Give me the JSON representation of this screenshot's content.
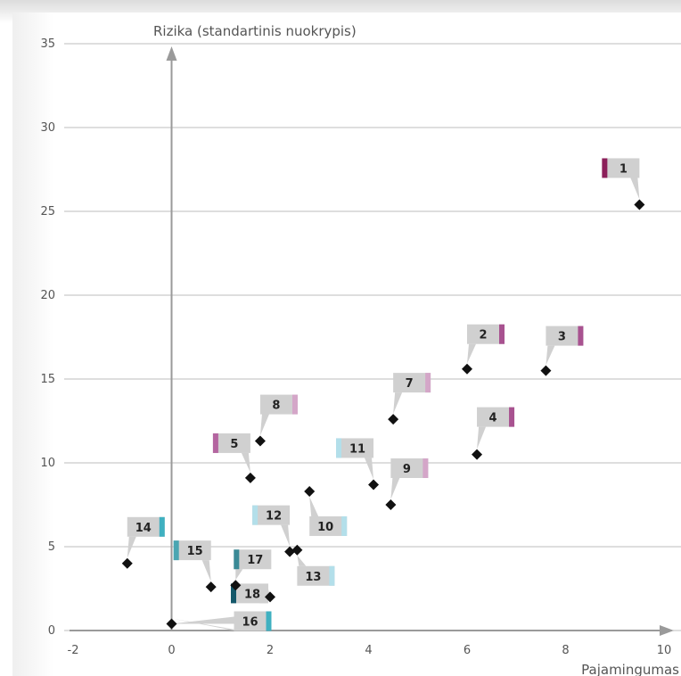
{
  "chart_data": {
    "type": "scatter",
    "ylabel": "Rizika (standartinis nuokrypis)",
    "xlabel": "Pajamingumas",
    "xlim": [
      -2,
      10
    ],
    "ylim": [
      0,
      35
    ],
    "x_ticks": [
      "-2",
      "0",
      "2",
      "4",
      "6",
      "8",
      "10"
    ],
    "y_ticks": [
      "0",
      "5",
      "10",
      "15",
      "20",
      "25",
      "30",
      "35"
    ],
    "grid": "horizontal",
    "points": [
      {
        "label": "1",
        "x": 9.5,
        "y": 25.4,
        "color": "#8c1f5a"
      },
      {
        "label": "2",
        "x": 6.0,
        "y": 15.6,
        "color": "#a85290"
      },
      {
        "label": "3",
        "x": 7.6,
        "y": 15.5,
        "color": "#a85290"
      },
      {
        "label": "4",
        "x": 6.2,
        "y": 10.5,
        "color": "#a85290"
      },
      {
        "label": "5",
        "x": 1.6,
        "y": 9.1,
        "color": "#b465a0"
      },
      {
        "label": "7",
        "x": 4.5,
        "y": 12.6,
        "color": "#d4a6c8"
      },
      {
        "label": "8",
        "x": 1.8,
        "y": 11.3,
        "color": "#d4a6c8"
      },
      {
        "label": "9",
        "x": 4.45,
        "y": 7.5,
        "color": "#d4a6c8"
      },
      {
        "label": "10",
        "x": 2.8,
        "y": 8.3,
        "color": "#b3dfea"
      },
      {
        "label": "11",
        "x": 4.1,
        "y": 8.7,
        "color": "#b3dfea"
      },
      {
        "label": "12",
        "x": 2.4,
        "y": 4.7,
        "color": "#b3dfea"
      },
      {
        "label": "13",
        "x": 2.55,
        "y": 4.8,
        "color": "#b3dfea"
      },
      {
        "label": "14",
        "x": -0.9,
        "y": 4.0,
        "color": "#3fb0c0"
      },
      {
        "label": "15",
        "x": 0.8,
        "y": 2.6,
        "color": "#4aa6b2"
      },
      {
        "label": "16",
        "x": 0.0,
        "y": 0.4,
        "color": "#3fb0c0"
      },
      {
        "label": "17",
        "x": 1.3,
        "y": 2.7,
        "color": "#3a8a96"
      },
      {
        "label": "18",
        "x": 2.0,
        "y": 2.0,
        "color": "#14586a"
      }
    ]
  }
}
